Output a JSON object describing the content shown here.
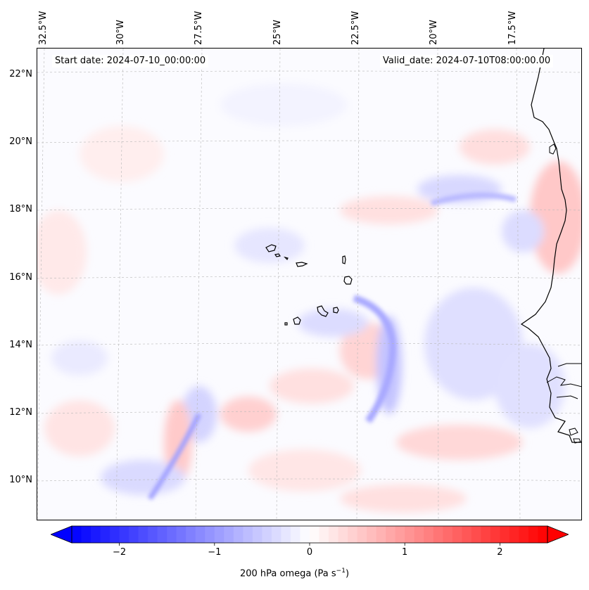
{
  "header": {
    "start_date": "Start date: 2024-07-10_00:00:00",
    "valid_date": "Valid_date: 2024-07-10T08:00:00.00"
  },
  "axes": {
    "lon_labels": [
      "32.5°W",
      "30°W",
      "27.5°W",
      "25°W",
      "22.5°W",
      "20°W",
      "17.5°W"
    ],
    "lat_labels": [
      "22°N",
      "20°N",
      "18°N",
      "16°N",
      "14°N",
      "12°N",
      "10°N"
    ]
  },
  "colorbar": {
    "min": -2.5,
    "max": 2.5,
    "ticks": [
      "−2",
      "−1",
      "0",
      "1",
      "2"
    ],
    "tick_values": [
      -2,
      -1,
      0,
      1,
      2
    ],
    "label_prefix": "200 hPa omega (Pa s",
    "label_exponent": "−1",
    "label_suffix": ")",
    "color_negative": "#0000ff",
    "color_zero": "#ffffff",
    "color_positive": "#ff0000"
  },
  "colors": {
    "coastline": "#000000",
    "gridline": "#b0b0b0"
  }
}
